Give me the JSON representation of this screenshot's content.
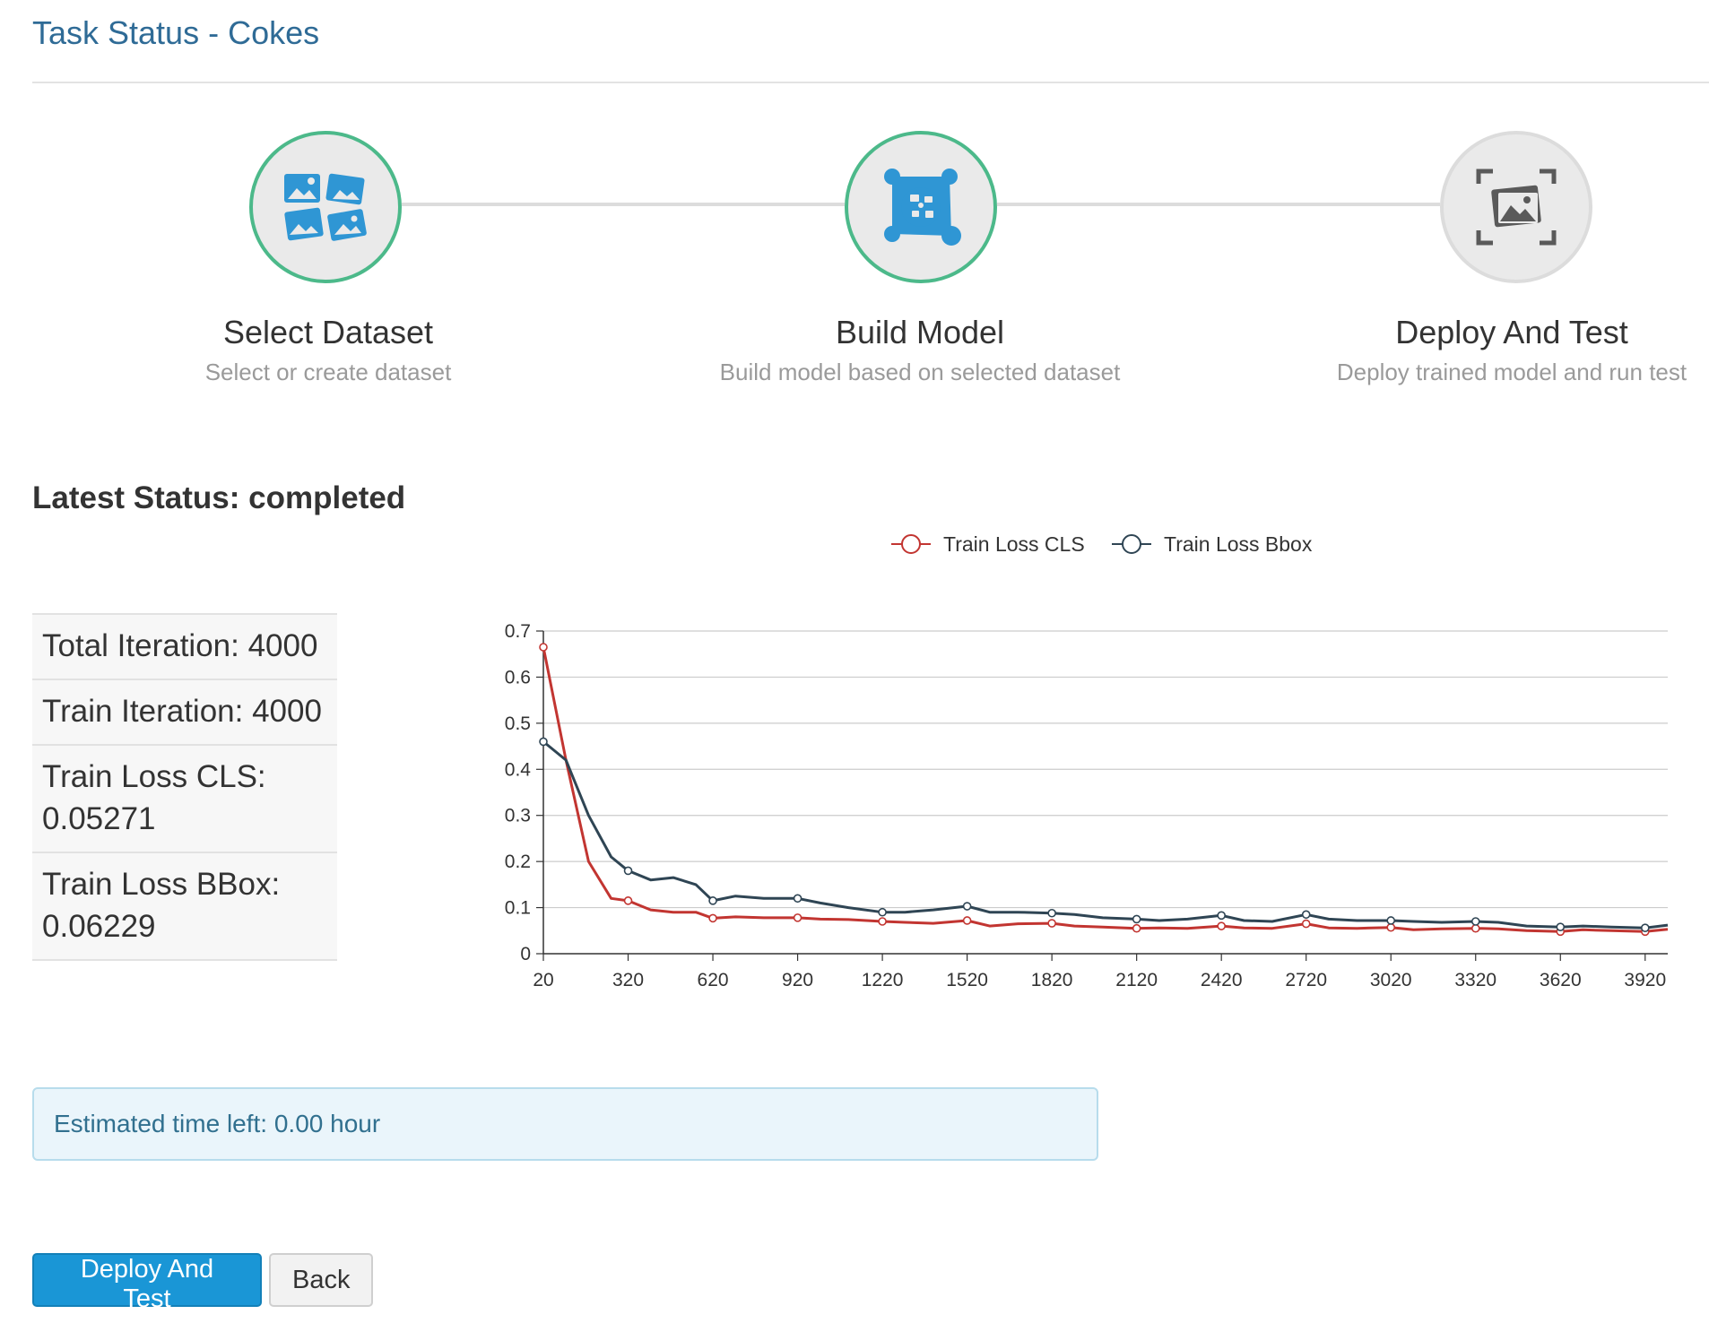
{
  "page": {
    "title": "Task Status - Cokes"
  },
  "steps": [
    {
      "title": "Select Dataset",
      "subtitle": "Select or create dataset",
      "state": "done",
      "icon": "dataset-images-icon"
    },
    {
      "title": "Build Model",
      "subtitle": "Build model based on selected dataset",
      "state": "done",
      "icon": "model-network-icon"
    },
    {
      "title": "Deploy And Test",
      "subtitle": "Deploy trained model and run test",
      "state": "pending",
      "icon": "deploy-scan-icon"
    }
  ],
  "status": {
    "latest": "Latest Status: completed"
  },
  "stats": {
    "total_iteration": "Total Iteration: 4000",
    "train_iteration": "Train Iteration: 4000",
    "loss_cls_label": "Train Loss CLS:",
    "loss_cls_value": "0.05271",
    "loss_bbox_label": "Train Loss BBox:",
    "loss_bbox_value": "0.06229"
  },
  "alert": {
    "text": "Estimated time left: 0.00 hour"
  },
  "buttons": {
    "deploy": "Deploy And Test",
    "back": "Back"
  },
  "colors": {
    "cls": "#c23531",
    "bbox": "#2f4554",
    "accent": "#1a96d6",
    "done": "#4cb98a"
  },
  "chart_data": {
    "type": "line",
    "title": "",
    "xlabel": "",
    "ylabel": "",
    "x": [
      20,
      100,
      180,
      260,
      320,
      400,
      480,
      560,
      620,
      700,
      800,
      920,
      1000,
      1100,
      1220,
      1300,
      1400,
      1520,
      1600,
      1700,
      1820,
      1900,
      2000,
      2120,
      2200,
      2300,
      2420,
      2500,
      2600,
      2720,
      2800,
      2900,
      3020,
      3100,
      3200,
      3320,
      3400,
      3500,
      3620,
      3700,
      3800,
      3920,
      4000
    ],
    "x_ticks": [
      "20",
      "320",
      "620",
      "920",
      "1220",
      "1520",
      "1820",
      "2120",
      "2420",
      "2720",
      "3020",
      "3320",
      "3620",
      "3920"
    ],
    "ylim": [
      0,
      0.7
    ],
    "y_ticks": [
      "0",
      "0.1",
      "0.2",
      "0.3",
      "0.4",
      "0.5",
      "0.6",
      "0.7"
    ],
    "legend_position": "top-center",
    "series": [
      {
        "name": "Train Loss CLS",
        "color": "#c23531",
        "values": [
          0.665,
          0.42,
          0.2,
          0.12,
          0.115,
          0.095,
          0.09,
          0.09,
          0.077,
          0.08,
          0.078,
          0.078,
          0.075,
          0.074,
          0.07,
          0.068,
          0.066,
          0.072,
          0.06,
          0.065,
          0.066,
          0.06,
          0.058,
          0.055,
          0.056,
          0.055,
          0.06,
          0.056,
          0.055,
          0.065,
          0.056,
          0.055,
          0.057,
          0.052,
          0.054,
          0.055,
          0.054,
          0.05,
          0.048,
          0.052,
          0.05,
          0.048,
          0.053
        ]
      },
      {
        "name": "Train Loss Bbox",
        "color": "#2f4554",
        "values": [
          0.46,
          0.42,
          0.3,
          0.21,
          0.18,
          0.16,
          0.165,
          0.15,
          0.115,
          0.125,
          0.12,
          0.12,
          0.11,
          0.1,
          0.09,
          0.09,
          0.095,
          0.103,
          0.09,
          0.09,
          0.088,
          0.085,
          0.078,
          0.075,
          0.072,
          0.075,
          0.083,
          0.072,
          0.07,
          0.085,
          0.075,
          0.072,
          0.072,
          0.07,
          0.068,
          0.07,
          0.068,
          0.06,
          0.058,
          0.06,
          0.058,
          0.056,
          0.062
        ]
      }
    ]
  }
}
